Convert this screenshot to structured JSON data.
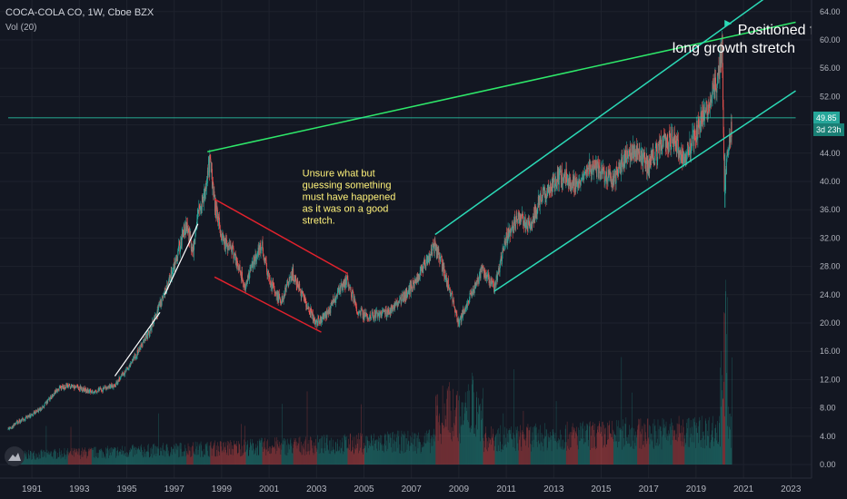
{
  "header": {
    "symbol_line": "COCA-COLA CO, 1W, Cboe BZX",
    "volume_label": "Vol (20)"
  },
  "price_tags": {
    "last_price": "49.85",
    "countdown": "3d 23h"
  },
  "colors": {
    "background": "#131722",
    "grid": "#1e222d",
    "up": "#26a69a",
    "down": "#ef5350",
    "channel_teal": "#2bd9b6",
    "resistance_green": "#2ee86a",
    "red_channel": "#e0222d",
    "annotation_text": "#fff27a",
    "axis_text": "#b2b5be"
  },
  "chart_data": {
    "type": "candlestick",
    "x_range": [
      "1990",
      "2023"
    ],
    "y_range": [
      -2,
      68
    ],
    "x_ticks": [
      "1991",
      "1993",
      "1995",
      "1997",
      "1999",
      "2001",
      "2003",
      "2005",
      "2007",
      "2009",
      "2011",
      "2013",
      "2015",
      "2017",
      "2019",
      "2021",
      "2023"
    ],
    "y_ticks": [
      "0.00",
      "4.00",
      "8.00",
      "12.00",
      "16.00",
      "20.00",
      "24.00",
      "28.00",
      "32.00",
      "36.00",
      "40.00",
      "44.00",
      "48.00",
      "52.00",
      "56.00",
      "60.00",
      "64.00"
    ],
    "price_path": [
      [
        1990.0,
        5.0
      ],
      [
        1990.5,
        6.2
      ],
      [
        1991.0,
        7.0
      ],
      [
        1991.5,
        8.2
      ],
      [
        1992.0,
        10.4
      ],
      [
        1992.5,
        11.2
      ],
      [
        1993.0,
        10.8
      ],
      [
        1993.5,
        10.3
      ],
      [
        1994.0,
        10.6
      ],
      [
        1994.5,
        11.2
      ],
      [
        1995.0,
        13.5
      ],
      [
        1995.5,
        16.0
      ],
      [
        1996.0,
        19.0
      ],
      [
        1996.5,
        23.5
      ],
      [
        1997.0,
        28.0
      ],
      [
        1997.5,
        34.0
      ],
      [
        1997.8,
        30.0
      ],
      [
        1998.0,
        35.0
      ],
      [
        1998.3,
        38.5
      ],
      [
        1998.5,
        43.0
      ],
      [
        1998.7,
        37.0
      ],
      [
        1999.0,
        32.0
      ],
      [
        1999.5,
        30.0
      ],
      [
        2000.0,
        25.0
      ],
      [
        2000.3,
        28.5
      ],
      [
        2000.7,
        31.0
      ],
      [
        2001.0,
        26.0
      ],
      [
        2001.5,
        23.0
      ],
      [
        2002.0,
        27.0
      ],
      [
        2002.5,
        23.0
      ],
      [
        2003.0,
        20.0
      ],
      [
        2003.5,
        21.5
      ],
      [
        2004.0,
        25.0
      ],
      [
        2004.3,
        26.0
      ],
      [
        2004.7,
        22.0
      ],
      [
        2005.0,
        21.0
      ],
      [
        2006.0,
        21.5
      ],
      [
        2006.5,
        23.0
      ],
      [
        2007.0,
        25.0
      ],
      [
        2007.5,
        28.0
      ],
      [
        2008.0,
        31.0
      ],
      [
        2008.5,
        26.0
      ],
      [
        2009.0,
        20.0
      ],
      [
        2009.5,
        24.0
      ],
      [
        2010.0,
        27.5
      ],
      [
        2010.5,
        25.0
      ],
      [
        2011.0,
        32.0
      ],
      [
        2011.5,
        35.0
      ],
      [
        2012.0,
        34.0
      ],
      [
        2012.5,
        38.0
      ],
      [
        2013.0,
        40.0
      ],
      [
        2013.5,
        41.0
      ],
      [
        2014.0,
        39.0
      ],
      [
        2014.5,
        42.0
      ],
      [
        2015.0,
        41.5
      ],
      [
        2015.5,
        40.0
      ],
      [
        2016.0,
        43.5
      ],
      [
        2016.5,
        44.5
      ],
      [
        2017.0,
        42.0
      ],
      [
        2017.5,
        45.0
      ],
      [
        2018.0,
        46.0
      ],
      [
        2018.5,
        43.0
      ],
      [
        2019.0,
        47.0
      ],
      [
        2019.5,
        51.0
      ],
      [
        2019.9,
        54.0
      ],
      [
        2020.1,
        59.5
      ],
      [
        2020.2,
        38.0
      ],
      [
        2020.3,
        44.0
      ],
      [
        2020.5,
        47.5
      ]
    ],
    "trend_lines": [
      {
        "color": "white",
        "points": [
          [
            1994.5,
            12.5
          ],
          [
            1996.4,
            21.5
          ]
        ]
      },
      {
        "color": "white",
        "points": [
          [
            1996.6,
            24.0
          ],
          [
            1998.0,
            34.0
          ]
        ]
      },
      {
        "color": "resistance_green",
        "points": [
          [
            1998.4,
            44.2
          ],
          [
            2023.2,
            62.5
          ]
        ]
      },
      {
        "color": "channel_teal",
        "points": [
          [
            2008.0,
            32.5
          ],
          [
            2023.2,
            69.0
          ]
        ]
      },
      {
        "color": "channel_teal",
        "points": [
          [
            2010.5,
            24.5
          ],
          [
            2023.2,
            52.8
          ]
        ]
      },
      {
        "color": "red_channel",
        "points": [
          [
            1998.7,
            37.5
          ],
          [
            2004.3,
            27.0
          ]
        ]
      },
      {
        "color": "red_channel",
        "points": [
          [
            1998.7,
            26.5
          ],
          [
            2003.2,
            18.7
          ]
        ]
      },
      {
        "color": "channel_teal",
        "points": [
          [
            1990.0,
            49.0
          ],
          [
            2023.2,
            49.0
          ]
        ]
      }
    ],
    "annotations": [
      {
        "lines": [
          "Positioned for a",
          "long growth stretch"
        ],
        "x": 2018.0,
        "y": 60.8,
        "color": "white"
      },
      {
        "lines": [
          "Unsure what but",
          "guessing something",
          "must have happened",
          "as it was on a good",
          "stretch."
        ],
        "x": 2002.4,
        "y": 40.7,
        "color": "annotation_text"
      }
    ],
    "xlabel": "",
    "ylabel": "",
    "legend": "top-left"
  }
}
